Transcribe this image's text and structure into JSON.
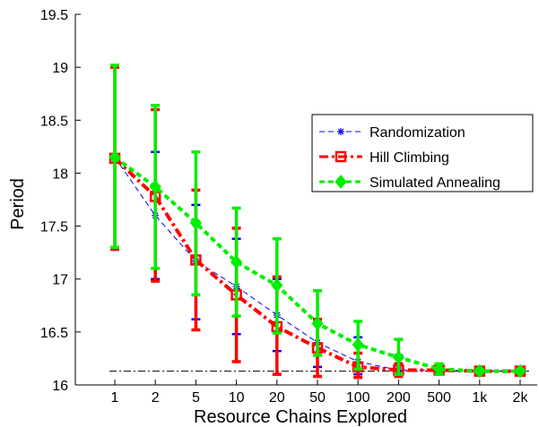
{
  "chart_data": {
    "type": "line",
    "xlabel": "Resource Chains Explored",
    "ylabel": "Period",
    "categories": [
      "1",
      "2",
      "5",
      "10",
      "20",
      "50",
      "100",
      "200",
      "500",
      "1k",
      "2k"
    ],
    "ylim": [
      16,
      19.5
    ],
    "yticks": [
      "16",
      "16.5",
      "17",
      "17.5",
      "18",
      "18.5",
      "19",
      "19.5"
    ],
    "legend_position": "top-right",
    "reference_line": 16.13,
    "series": [
      {
        "name": "Randomization",
        "color": "#0000ff",
        "line_style": "dashed",
        "marker": "asterisk",
        "values": [
          18.15,
          17.6,
          17.17,
          16.93,
          16.66,
          16.4,
          16.22,
          16.14,
          16.14,
          16.13,
          16.13
        ],
        "err_low": [
          17.3,
          17.0,
          16.62,
          16.48,
          16.32,
          16.17,
          16.1,
          16.1,
          16.12,
          16.12,
          16.12
        ],
        "err_high": [
          19.0,
          18.2,
          17.7,
          17.38,
          17.0,
          16.62,
          16.45,
          16.28,
          16.16,
          16.14,
          16.14
        ]
      },
      {
        "name": "Hill Climbing",
        "color": "#ff0000",
        "line_style": "dashdot",
        "marker": "square",
        "values": [
          18.14,
          17.78,
          17.18,
          16.85,
          16.55,
          16.35,
          16.17,
          16.14,
          16.14,
          16.13,
          16.13
        ],
        "err_low": [
          17.28,
          16.98,
          16.52,
          16.22,
          16.1,
          16.08,
          16.07,
          16.08,
          16.11,
          16.12,
          16.12
        ],
        "err_high": [
          19.0,
          18.6,
          17.84,
          17.48,
          17.02,
          16.62,
          16.3,
          16.2,
          16.17,
          16.14,
          16.14
        ]
      },
      {
        "name": "Simulated Annealing",
        "color": "#00ee00",
        "line_style": "dashed",
        "marker": "diamond",
        "values": [
          18.15,
          17.87,
          17.53,
          17.16,
          16.94,
          16.58,
          16.38,
          16.26,
          16.15,
          16.13,
          16.13
        ],
        "err_low": [
          17.3,
          17.1,
          16.85,
          16.65,
          16.49,
          16.28,
          16.15,
          16.1,
          16.1,
          16.12,
          16.12
        ],
        "err_high": [
          19.02,
          18.64,
          18.2,
          17.67,
          17.38,
          16.89,
          16.6,
          16.43,
          16.2,
          16.15,
          16.15
        ]
      }
    ]
  }
}
